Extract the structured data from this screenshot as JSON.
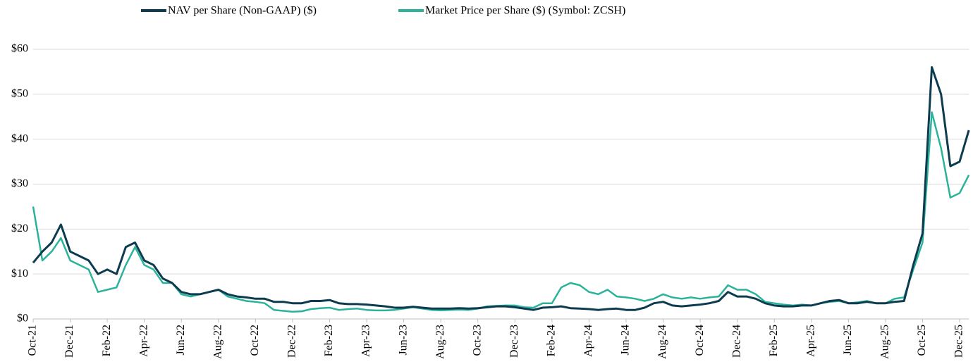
{
  "chart_data": {
    "type": "line",
    "categories": [
      "Oct-21",
      null,
      null,
      null,
      "Dec-21",
      null,
      null,
      null,
      "Feb-22",
      null,
      null,
      null,
      "Apr-22",
      null,
      null,
      null,
      "Jun-22",
      null,
      null,
      null,
      "Aug-22",
      null,
      null,
      null,
      "Oct-22",
      null,
      null,
      null,
      "Dec-22",
      null,
      null,
      null,
      "Feb-23",
      null,
      null,
      null,
      "Apr-23",
      null,
      null,
      null,
      "Jun-23",
      null,
      null,
      null,
      "Aug-23",
      null,
      null,
      null,
      "Oct-23",
      null,
      null,
      null,
      "Dec-23",
      null,
      null,
      null,
      "Feb-24",
      null,
      null,
      null,
      "Apr-24",
      null,
      null,
      null,
      "Jun-24",
      null,
      null,
      null,
      "Aug-24",
      null,
      null,
      null,
      "Oct-24",
      null,
      null,
      null,
      "Dec-24",
      null,
      null,
      null,
      "Feb-25",
      null,
      null,
      null,
      "Apr-25",
      null,
      null,
      null,
      "Jun-25",
      null,
      null,
      null,
      "Aug-25",
      null,
      null,
      null,
      "Oct-25",
      null,
      null,
      null,
      "Dec-25",
      null
    ],
    "series": [
      {
        "name": "NAV per Share (Non-GAAP) ($)",
        "color": "#0d3b4f",
        "values": [
          12.5,
          15,
          17,
          21,
          15,
          14,
          13,
          10,
          11,
          10,
          16,
          17,
          13,
          12,
          9,
          8,
          6,
          5.5,
          5.5,
          6,
          6.5,
          5.5,
          5,
          4.8,
          4.5,
          4.5,
          3.8,
          3.8,
          3.5,
          3.5,
          4,
          4,
          4.2,
          3.5,
          3.3,
          3.3,
          3.2,
          3,
          2.8,
          2.5,
          2.5,
          2.7,
          2.5,
          2.3,
          2.3,
          2.3,
          2.4,
          2.3,
          2.4,
          2.6,
          2.8,
          2.8,
          2.6,
          2.3,
          2,
          2.5,
          2.6,
          2.8,
          2.4,
          2.3,
          2.2,
          2,
          2.2,
          2.3,
          2,
          2,
          2.5,
          3.5,
          3.8,
          3,
          2.8,
          3,
          3.2,
          3.5,
          4,
          6,
          5,
          5,
          4.5,
          3.5,
          3,
          2.8,
          2.8,
          3,
          3,
          3.5,
          4,
          4.2,
          3.5,
          3.5,
          3.8,
          3.5,
          3.5,
          3.8,
          4,
          12,
          19,
          56,
          50,
          34,
          35,
          42
        ]
      },
      {
        "name": "Market Price per Share ($) (Symbol: ZCSH)",
        "color": "#2bb39a",
        "values": [
          25,
          13,
          15,
          18,
          13,
          12,
          11,
          6,
          6.5,
          7,
          12,
          16,
          12,
          11,
          8,
          8,
          5.5,
          5,
          5.5,
          6,
          6.5,
          5,
          4.5,
          4,
          3.8,
          3.5,
          2,
          1.8,
          1.6,
          1.7,
          2.2,
          2.4,
          2.5,
          2,
          2.2,
          2.3,
          2,
          1.9,
          1.9,
          2,
          2.3,
          2.6,
          2.3,
          2,
          1.9,
          2,
          2.1,
          2,
          2.3,
          2.8,
          2.9,
          3,
          3,
          2.6,
          2.5,
          3.5,
          3.5,
          7,
          8,
          7.5,
          6,
          5.5,
          6.5,
          5,
          4.8,
          4.5,
          4,
          4.5,
          5.5,
          4.8,
          4.5,
          4.8,
          4.5,
          4.8,
          5,
          7.5,
          6.5,
          6.5,
          5.5,
          3.8,
          3.5,
          3.2,
          3,
          3.2,
          3,
          3.5,
          3.8,
          4,
          3.5,
          3.7,
          4,
          3.5,
          3.5,
          4.5,
          4.8,
          11,
          17,
          46,
          38,
          27,
          28,
          32
        ]
      }
    ],
    "ylim": [
      0,
      60
    ],
    "yticks": [
      {
        "value": 0,
        "label": "$0"
      },
      {
        "value": 10,
        "label": "$10"
      },
      {
        "value": 20,
        "label": "$20"
      },
      {
        "value": 30,
        "label": "$30"
      },
      {
        "value": 40,
        "label": "$40"
      },
      {
        "value": 50,
        "label": "$50"
      },
      {
        "value": 60,
        "label": "$60"
      }
    ],
    "grid": true
  }
}
